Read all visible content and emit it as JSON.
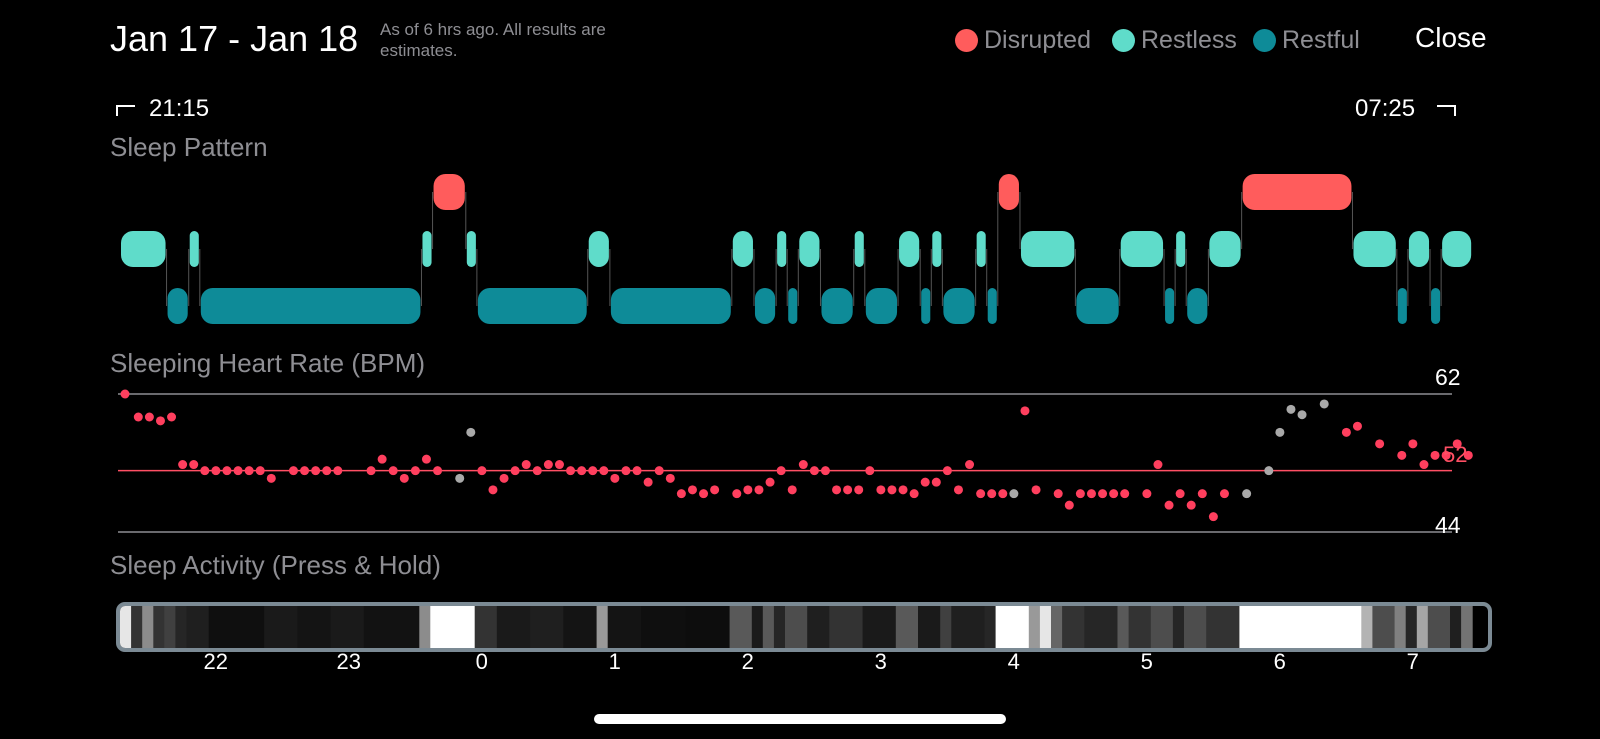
{
  "header": {
    "date_range": "Jan 17 - Jan 18",
    "note": "As of 6 hrs ago. All results are estimates.",
    "close_label": "Close",
    "legend": [
      {
        "label": "Disrupted",
        "color": "#ff5c5c"
      },
      {
        "label": "Restless",
        "color": "#5fdcca"
      },
      {
        "label": "Restful",
        "color": "#0e8b98"
      }
    ]
  },
  "times": {
    "start": "21:15",
    "end": "07:25"
  },
  "sections": {
    "sleep_pattern": "Sleep Pattern",
    "heart_rate": "Sleeping Heart Rate (BPM)",
    "activity": "Sleep Activity (Press & Hold)"
  },
  "heart_rate": {
    "max_label": "62",
    "avg_label": "52",
    "min_label": "44",
    "max": 62,
    "avg": 52,
    "min": 44,
    "samples": [
      {
        "t": "21:15",
        "bpm": 62
      },
      {
        "t": "21:21",
        "bpm": 59
      },
      {
        "t": "21:26",
        "bpm": 59
      },
      {
        "t": "21:31",
        "bpm": 58.5
      },
      {
        "t": "21:36",
        "bpm": 59
      },
      {
        "t": "21:41",
        "bpm": 52.8
      },
      {
        "t": "21:46",
        "bpm": 52.8
      },
      {
        "t": "21:51",
        "bpm": 52
      },
      {
        "t": "21:56",
        "bpm": 52
      },
      {
        "t": "22:01",
        "bpm": 52
      },
      {
        "t": "22:06",
        "bpm": 52
      },
      {
        "t": "22:11",
        "bpm": 52
      },
      {
        "t": "22:16",
        "bpm": 52
      },
      {
        "t": "22:21",
        "bpm": 51
      },
      {
        "t": "22:31",
        "bpm": 52
      },
      {
        "t": "22:36",
        "bpm": 52
      },
      {
        "t": "22:41",
        "bpm": 52
      },
      {
        "t": "22:46",
        "bpm": 52
      },
      {
        "t": "22:51",
        "bpm": 52
      },
      {
        "t": "23:06",
        "bpm": 52
      },
      {
        "t": "23:11",
        "bpm": 53.5
      },
      {
        "t": "23:16",
        "bpm": 52
      },
      {
        "t": "23:21",
        "bpm": 51
      },
      {
        "t": "23:26",
        "bpm": 52
      },
      {
        "t": "23:31",
        "bpm": 53.5
      },
      {
        "t": "23:36",
        "bpm": 52
      },
      {
        "t": "23:46",
        "bpm": 51,
        "gray": true
      },
      {
        "t": "23:51",
        "bpm": 57,
        "gray": true
      },
      {
        "t": "23:56",
        "bpm": 52
      },
      {
        "t": "00:01",
        "bpm": 49.5
      },
      {
        "t": "00:06",
        "bpm": 51
      },
      {
        "t": "00:11",
        "bpm": 52
      },
      {
        "t": "00:16",
        "bpm": 52.8
      },
      {
        "t": "00:21",
        "bpm": 52
      },
      {
        "t": "00:26",
        "bpm": 52.8
      },
      {
        "t": "00:31",
        "bpm": 52.8
      },
      {
        "t": "00:36",
        "bpm": 52
      },
      {
        "t": "00:41",
        "bpm": 52
      },
      {
        "t": "00:46",
        "bpm": 52
      },
      {
        "t": "00:51",
        "bpm": 52
      },
      {
        "t": "00:56",
        "bpm": 51
      },
      {
        "t": "01:01",
        "bpm": 52
      },
      {
        "t": "01:06",
        "bpm": 52
      },
      {
        "t": "01:11",
        "bpm": 50.5
      },
      {
        "t": "01:16",
        "bpm": 52
      },
      {
        "t": "01:21",
        "bpm": 51
      },
      {
        "t": "01:26",
        "bpm": 49
      },
      {
        "t": "01:31",
        "bpm": 49.5
      },
      {
        "t": "01:36",
        "bpm": 49
      },
      {
        "t": "01:41",
        "bpm": 49.5
      },
      {
        "t": "01:51",
        "bpm": 49
      },
      {
        "t": "01:56",
        "bpm": 49.5
      },
      {
        "t": "02:01",
        "bpm": 49.5
      },
      {
        "t": "02:06",
        "bpm": 50.5
      },
      {
        "t": "02:11",
        "bpm": 52
      },
      {
        "t": "02:16",
        "bpm": 49.5
      },
      {
        "t": "02:21",
        "bpm": 52.8
      },
      {
        "t": "02:26",
        "bpm": 52
      },
      {
        "t": "02:31",
        "bpm": 52
      },
      {
        "t": "02:36",
        "bpm": 49.5
      },
      {
        "t": "02:41",
        "bpm": 49.5
      },
      {
        "t": "02:46",
        "bpm": 49.5
      },
      {
        "t": "02:51",
        "bpm": 52
      },
      {
        "t": "02:56",
        "bpm": 49.5
      },
      {
        "t": "03:01",
        "bpm": 49.5
      },
      {
        "t": "03:06",
        "bpm": 49.5
      },
      {
        "t": "03:11",
        "bpm": 49
      },
      {
        "t": "03:16",
        "bpm": 50.5
      },
      {
        "t": "03:21",
        "bpm": 50.5
      },
      {
        "t": "03:26",
        "bpm": 52
      },
      {
        "t": "03:31",
        "bpm": 49.5
      },
      {
        "t": "03:36",
        "bpm": 52.8
      },
      {
        "t": "03:41",
        "bpm": 49
      },
      {
        "t": "03:46",
        "bpm": 49
      },
      {
        "t": "03:51",
        "bpm": 49
      },
      {
        "t": "03:56",
        "bpm": 49,
        "gray": true
      },
      {
        "t": "04:01",
        "bpm": 59.8
      },
      {
        "t": "04:06",
        "bpm": 49.5
      },
      {
        "t": "04:16",
        "bpm": 49
      },
      {
        "t": "04:21",
        "bpm": 47.5
      },
      {
        "t": "04:26",
        "bpm": 49
      },
      {
        "t": "04:31",
        "bpm": 49
      },
      {
        "t": "04:36",
        "bpm": 49
      },
      {
        "t": "04:41",
        "bpm": 49
      },
      {
        "t": "04:46",
        "bpm": 49
      },
      {
        "t": "04:56",
        "bpm": 49
      },
      {
        "t": "05:01",
        "bpm": 52.8
      },
      {
        "t": "05:06",
        "bpm": 47.5
      },
      {
        "t": "05:11",
        "bpm": 49
      },
      {
        "t": "05:16",
        "bpm": 47.5
      },
      {
        "t": "05:21",
        "bpm": 49
      },
      {
        "t": "05:26",
        "bpm": 46
      },
      {
        "t": "05:31",
        "bpm": 49
      },
      {
        "t": "05:41",
        "bpm": 49,
        "gray": true
      },
      {
        "t": "05:51",
        "bpm": 52,
        "gray": true
      },
      {
        "t": "05:56",
        "bpm": 57,
        "gray": true
      },
      {
        "t": "06:01",
        "bpm": 60,
        "gray": true
      },
      {
        "t": "06:06",
        "bpm": 59.3,
        "gray": true
      },
      {
        "t": "06:16",
        "bpm": 60.7,
        "gray": true
      },
      {
        "t": "06:26",
        "bpm": 57
      },
      {
        "t": "06:31",
        "bpm": 57.8
      },
      {
        "t": "06:41",
        "bpm": 55.5
      },
      {
        "t": "06:51",
        "bpm": 54
      },
      {
        "t": "06:56",
        "bpm": 55.5
      },
      {
        "t": "07:01",
        "bpm": 52.8
      },
      {
        "t": "07:06",
        "bpm": 54
      },
      {
        "t": "07:11",
        "bpm": 54
      },
      {
        "t": "07:16",
        "bpm": 55.5
      },
      {
        "t": "07:21",
        "bpm": 54
      }
    ]
  },
  "sleep_pattern": [
    [
      "restless",
      "21:15",
      "21:36"
    ],
    [
      "restful",
      "21:36",
      "21:46"
    ],
    [
      "restless",
      "21:46",
      "21:51"
    ],
    [
      "restful",
      "21:51",
      "23:31"
    ],
    [
      "restless",
      "23:31",
      "23:36"
    ],
    [
      "disrupted",
      "23:36",
      "23:51"
    ],
    [
      "restless",
      "23:51",
      "23:56"
    ],
    [
      "restful",
      "23:56",
      "00:46"
    ],
    [
      "restless",
      "00:46",
      "00:56"
    ],
    [
      "restful",
      "00:56",
      "01:51"
    ],
    [
      "restless",
      "01:51",
      "02:01"
    ],
    [
      "restful",
      "02:01",
      "02:11"
    ],
    [
      "restless",
      "02:11",
      "02:16"
    ],
    [
      "restful",
      "02:16",
      "02:21"
    ],
    [
      "restless",
      "02:21",
      "02:31"
    ],
    [
      "restful",
      "02:31",
      "02:46"
    ],
    [
      "restless",
      "02:46",
      "02:51"
    ],
    [
      "restful",
      "02:51",
      "03:06"
    ],
    [
      "restless",
      "03:06",
      "03:16"
    ],
    [
      "restful",
      "03:16",
      "03:21"
    ],
    [
      "restless",
      "03:21",
      "03:26"
    ],
    [
      "restful",
      "03:26",
      "03:41"
    ],
    [
      "restless",
      "03:41",
      "03:46"
    ],
    [
      "restful",
      "03:46",
      "03:51"
    ],
    [
      "disrupted",
      "03:51",
      "04:01"
    ],
    [
      "restless",
      "04:01",
      "04:26"
    ],
    [
      "restful",
      "04:26",
      "04:46"
    ],
    [
      "restless",
      "04:46",
      "05:06"
    ],
    [
      "restful",
      "05:06",
      "05:11"
    ],
    [
      "restless",
      "05:11",
      "05:16"
    ],
    [
      "restful",
      "05:16",
      "05:26"
    ],
    [
      "restless",
      "05:26",
      "05:41"
    ],
    [
      "disrupted",
      "05:41",
      "06:31"
    ],
    [
      "restless",
      "06:31",
      "06:51"
    ],
    [
      "restful",
      "06:51",
      "06:56"
    ],
    [
      "restless",
      "06:56",
      "07:06"
    ],
    [
      "restful",
      "07:06",
      "07:11"
    ],
    [
      "restless",
      "07:11",
      "07:25"
    ]
  ],
  "activity_axis": [
    "22",
    "23",
    "0",
    "1",
    "2",
    "3",
    "4",
    "5",
    "6",
    "7"
  ],
  "activity_levels": [
    {
      "t": "21:15",
      "v": 0.9
    },
    {
      "t": "21:20",
      "v": 0.2
    },
    {
      "t": "21:25",
      "v": 0.55
    },
    {
      "t": "21:30",
      "v": 0.2
    },
    {
      "t": "21:35",
      "v": 0.25
    },
    {
      "t": "21:40",
      "v": 0.15
    },
    {
      "t": "21:45",
      "v": 0.12
    },
    {
      "t": "21:55",
      "v": 0.06
    },
    {
      "t": "22:20",
      "v": 0.1
    },
    {
      "t": "22:35",
      "v": 0.08
    },
    {
      "t": "22:50",
      "v": 0.1
    },
    {
      "t": "23:05",
      "v": 0.07
    },
    {
      "t": "23:30",
      "v": 0.55
    },
    {
      "t": "23:35",
      "v": 1.0
    },
    {
      "t": "23:55",
      "v": 0.2
    },
    {
      "t": "00:05",
      "v": 0.1
    },
    {
      "t": "00:20",
      "v": 0.12
    },
    {
      "t": "00:35",
      "v": 0.08
    },
    {
      "t": "00:50",
      "v": 0.6
    },
    {
      "t": "00:55",
      "v": 0.08
    },
    {
      "t": "01:10",
      "v": 0.06
    },
    {
      "t": "01:30",
      "v": 0.05
    },
    {
      "t": "01:50",
      "v": 0.35
    },
    {
      "t": "02:00",
      "v": 0.1
    },
    {
      "t": "02:05",
      "v": 0.35
    },
    {
      "t": "02:10",
      "v": 0.15
    },
    {
      "t": "02:15",
      "v": 0.3
    },
    {
      "t": "02:25",
      "v": 0.12
    },
    {
      "t": "02:35",
      "v": 0.2
    },
    {
      "t": "02:50",
      "v": 0.1
    },
    {
      "t": "03:05",
      "v": 0.35
    },
    {
      "t": "03:15",
      "v": 0.1
    },
    {
      "t": "03:25",
      "v": 0.25
    },
    {
      "t": "03:30",
      "v": 0.12
    },
    {
      "t": "03:45",
      "v": 0.15
    },
    {
      "t": "03:50",
      "v": 1.0
    },
    {
      "t": "04:05",
      "v": 0.6
    },
    {
      "t": "04:10",
      "v": 0.9
    },
    {
      "t": "04:15",
      "v": 0.4
    },
    {
      "t": "04:20",
      "v": 0.2
    },
    {
      "t": "04:30",
      "v": 0.15
    },
    {
      "t": "04:45",
      "v": 0.35
    },
    {
      "t": "04:50",
      "v": 0.2
    },
    {
      "t": "05:00",
      "v": 0.3
    },
    {
      "t": "05:10",
      "v": 0.15
    },
    {
      "t": "05:15",
      "v": 0.3
    },
    {
      "t": "05:25",
      "v": 0.2
    },
    {
      "t": "05:40",
      "v": 1.0
    },
    {
      "t": "06:35",
      "v": 0.7
    },
    {
      "t": "06:40",
      "v": 0.3
    },
    {
      "t": "06:50",
      "v": 0.5
    },
    {
      "t": "06:55",
      "v": 0.15
    },
    {
      "t": "07:00",
      "v": 0.65
    },
    {
      "t": "07:05",
      "v": 0.3
    },
    {
      "t": "07:15",
      "v": 0.12
    },
    {
      "t": "07:20",
      "v": 0.45
    }
  ]
}
